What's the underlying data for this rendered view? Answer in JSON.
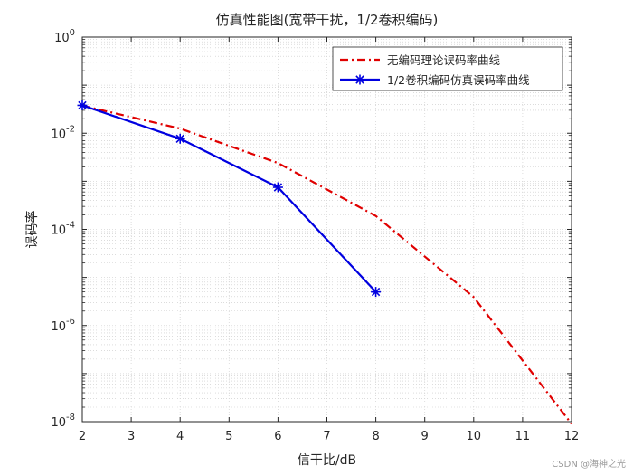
{
  "chart_data": {
    "type": "line",
    "title": "仿真性能图(宽带干扰，1/2卷积编码)",
    "xlabel": "信干比/dB",
    "ylabel": "误码率",
    "xlim": [
      2,
      12
    ],
    "ylim_exp": [
      -8,
      0
    ],
    "yscale": "log",
    "grid": true,
    "legend_position": "top-right",
    "x_ticks": [
      2,
      3,
      4,
      5,
      6,
      7,
      8,
      9,
      10,
      11,
      12
    ],
    "y_tick_exps": [
      0,
      -2,
      -4,
      -6,
      -8
    ],
    "series": [
      {
        "name": "无编码理论误码率曲线",
        "color": "#e00000",
        "style": "dash-dot",
        "marker": "none",
        "x": [
          2,
          4,
          6,
          8,
          10,
          12
        ],
        "y": [
          0.0375,
          0.0125,
          0.0024,
          0.00019,
          3.9e-06,
          9e-09
        ]
      },
      {
        "name": "1/2卷积编码仿真误码率曲线",
        "color": "#0000e0",
        "style": "solid",
        "marker": "star",
        "x": [
          2,
          4,
          6,
          8
        ],
        "y": [
          0.038,
          0.0077,
          0.00075,
          5e-06
        ]
      }
    ]
  },
  "watermark": "CSDN @海神之光"
}
